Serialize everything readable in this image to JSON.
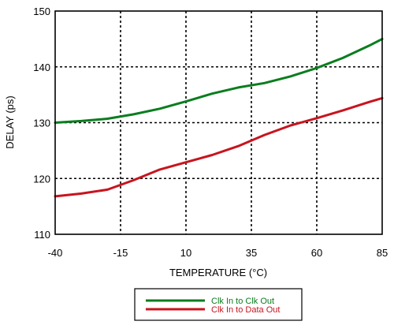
{
  "chart_data": {
    "type": "line",
    "title": "",
    "xlabel": "TEMPERATURE (°C)",
    "ylabel": "DELAY (ps)",
    "xlim": [
      -40,
      85
    ],
    "ylim": [
      110,
      150
    ],
    "xticks": [
      -40,
      -15,
      10,
      35,
      60,
      85
    ],
    "yticks": [
      110,
      120,
      130,
      140,
      150
    ],
    "grid": true,
    "legend": "bottom-center",
    "series": [
      {
        "name": "Clk In to Clk Out",
        "color": "#0a7d1f",
        "x": [
          -40,
          -30,
          -20,
          -10,
          0,
          10,
          20,
          30,
          40,
          50,
          60,
          70,
          80,
          85
        ],
        "y": [
          130.0,
          130.3,
          130.7,
          131.5,
          132.5,
          133.8,
          135.2,
          136.3,
          137.1,
          138.3,
          139.8,
          141.6,
          143.8,
          145.0
        ]
      },
      {
        "name": "Clk In to Data Out",
        "color": "#c8141e",
        "x": [
          -40,
          -30,
          -20,
          -10,
          0,
          10,
          20,
          30,
          40,
          50,
          60,
          70,
          80,
          85
        ],
        "y": [
          116.8,
          117.3,
          118.0,
          119.7,
          121.6,
          122.9,
          124.2,
          125.8,
          127.8,
          129.5,
          130.8,
          132.2,
          133.7,
          134.4
        ]
      }
    ]
  }
}
